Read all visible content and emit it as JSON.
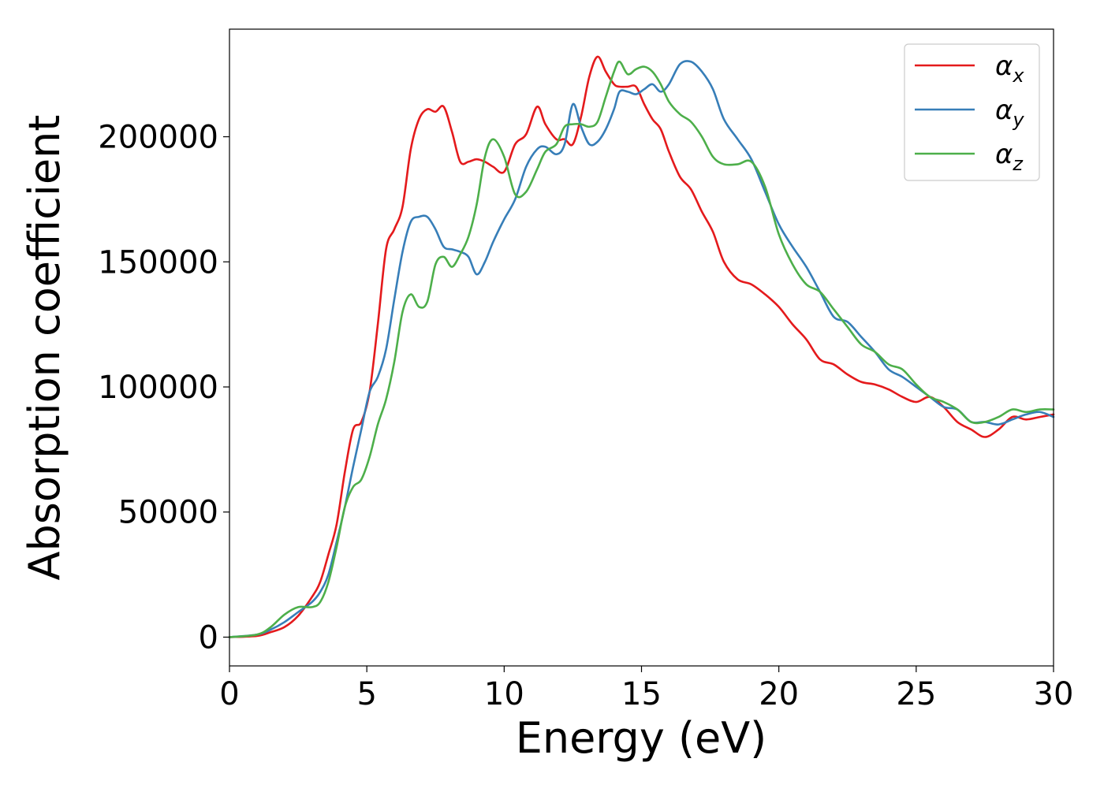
{
  "chart_data": {
    "type": "line",
    "title": "",
    "xlabel": "Energy (eV)",
    "ylabel": "Absorption coefficient",
    "xlim": [
      0,
      30
    ],
    "ylim": [
      -11500,
      243000
    ],
    "xticks": [
      0,
      5,
      10,
      15,
      20,
      25,
      30
    ],
    "xtick_labels": [
      "0",
      "5",
      "10",
      "15",
      "20",
      "25",
      "30"
    ],
    "yticks": [
      0,
      50000,
      100000,
      150000,
      200000
    ],
    "ytick_labels": [
      "0",
      "50000",
      "100000",
      "150000",
      "200000"
    ],
    "grid": false,
    "legend_position": "top-right",
    "series": [
      {
        "name": "αx",
        "legend_base": "α",
        "legend_sub": "x",
        "color": "#e41a1c",
        "x": [
          0,
          1,
          1.5,
          2,
          2.5,
          3,
          3.3,
          3.6,
          3.9,
          4.2,
          4.5,
          4.8,
          5.1,
          5.4,
          5.7,
          6.0,
          6.3,
          6.6,
          6.9,
          7.2,
          7.5,
          7.8,
          8.1,
          8.4,
          8.7,
          9.0,
          9.3,
          9.6,
          10.0,
          10.4,
          10.8,
          11.2,
          11.5,
          11.9,
          12.2,
          12.5,
          12.8,
          13.1,
          13.4,
          13.7,
          14.0,
          14.2,
          14.5,
          14.8,
          15.1,
          15.4,
          15.7,
          16.0,
          16.4,
          16.8,
          17.2,
          17.6,
          18.0,
          18.5,
          19.0,
          19.5,
          20.0,
          20.5,
          21.0,
          21.5,
          22.0,
          22.5,
          23.0,
          23.5,
          24.0,
          24.5,
          25.0,
          25.5,
          26.0,
          26.5,
          27.0,
          27.5,
          28.0,
          28.5,
          29.0,
          29.5,
          30.0
        ],
        "y": [
          0,
          500,
          2000,
          4000,
          8500,
          16000,
          22000,
          33000,
          45000,
          66000,
          83000,
          86000,
          98000,
          125000,
          155000,
          163000,
          172000,
          195000,
          207000,
          211000,
          210000,
          212000,
          202000,
          190000,
          190000,
          191000,
          190000,
          188000,
          186000,
          197000,
          201000,
          212000,
          205000,
          199000,
          199000,
          197000,
          208000,
          224000,
          232000,
          226000,
          221000,
          220000,
          220000,
          220000,
          213000,
          207000,
          203000,
          194000,
          184000,
          179000,
          170000,
          162000,
          150000,
          143000,
          141000,
          137000,
          132000,
          125000,
          119000,
          111000,
          109000,
          105000,
          102000,
          101000,
          99000,
          96000,
          94000,
          96000,
          92000,
          86000,
          83000,
          80000,
          83000,
          88000,
          87000,
          88000,
          89000
        ]
      },
      {
        "name": "αy",
        "legend_base": "α",
        "legend_sub": "y",
        "color": "#377eb8",
        "x": [
          0,
          1,
          1.5,
          2,
          2.5,
          3,
          3.3,
          3.6,
          3.9,
          4.2,
          4.5,
          4.8,
          5.1,
          5.4,
          5.7,
          6.0,
          6.3,
          6.6,
          6.9,
          7.2,
          7.5,
          7.8,
          8.1,
          8.4,
          8.7,
          9.0,
          9.3,
          9.6,
          10.0,
          10.4,
          10.8,
          11.2,
          11.5,
          11.9,
          12.2,
          12.5,
          12.8,
          13.1,
          13.4,
          13.7,
          14.0,
          14.2,
          14.5,
          14.8,
          15.1,
          15.4,
          15.7,
          16.0,
          16.4,
          16.8,
          17.2,
          17.6,
          18.0,
          18.5,
          19.0,
          19.5,
          20.0,
          20.5,
          21.0,
          21.5,
          22.0,
          22.5,
          23.0,
          23.5,
          24.0,
          24.5,
          25.0,
          25.5,
          26.0,
          26.5,
          27.0,
          27.5,
          28.0,
          28.5,
          29.0,
          29.5,
          30.0
        ],
        "y": [
          0,
          1000,
          3000,
          6000,
          10000,
          14000,
          18000,
          25000,
          38000,
          52000,
          68000,
          83000,
          98000,
          104000,
          115000,
          135000,
          154000,
          166000,
          168000,
          168000,
          163000,
          156000,
          155000,
          154000,
          152000,
          145000,
          150000,
          158000,
          167000,
          175000,
          188000,
          195000,
          196000,
          193000,
          197000,
          213000,
          204000,
          197000,
          198000,
          203000,
          211000,
          218000,
          218000,
          217000,
          219000,
          221000,
          218000,
          221000,
          229000,
          230000,
          226000,
          219000,
          207000,
          199000,
          191000,
          178000,
          165000,
          156000,
          148000,
          138000,
          128000,
          126000,
          120000,
          114000,
          107000,
          104000,
          100000,
          96000,
          92000,
          91000,
          86000,
          86000,
          85000,
          87000,
          89000,
          90000,
          88000
        ]
      },
      {
        "name": "αz",
        "legend_base": "α",
        "legend_sub": "z",
        "color": "#4daf4a",
        "x": [
          0,
          1,
          1.5,
          2,
          2.5,
          3,
          3.3,
          3.6,
          3.9,
          4.2,
          4.5,
          4.8,
          5.1,
          5.4,
          5.7,
          6.0,
          6.3,
          6.6,
          6.9,
          7.2,
          7.5,
          7.8,
          8.1,
          8.4,
          8.7,
          9.0,
          9.3,
          9.6,
          10.0,
          10.4,
          10.8,
          11.2,
          11.5,
          11.9,
          12.2,
          12.5,
          12.8,
          13.1,
          13.4,
          13.7,
          14.0,
          14.2,
          14.5,
          14.8,
          15.1,
          15.4,
          15.7,
          16.0,
          16.4,
          16.8,
          17.2,
          17.6,
          18.0,
          18.5,
          19.0,
          19.5,
          20.0,
          20.5,
          21.0,
          21.5,
          22.0,
          22.5,
          23.0,
          23.5,
          24.0,
          24.5,
          25.0,
          25.5,
          26.0,
          26.5,
          27.0,
          27.5,
          28.0,
          28.5,
          29.0,
          29.5,
          30.0
        ],
        "y": [
          0,
          1000,
          4000,
          9000,
          12000,
          12000,
          14000,
          22000,
          36000,
          52000,
          60000,
          63000,
          72000,
          85000,
          95000,
          110000,
          130000,
          137000,
          132000,
          134000,
          149000,
          152000,
          148000,
          153000,
          160000,
          173000,
          192000,
          199000,
          192000,
          177000,
          178000,
          187000,
          194000,
          197000,
          204000,
          205000,
          205000,
          204000,
          206000,
          216000,
          226000,
          230000,
          225000,
          227000,
          228000,
          226000,
          221000,
          214000,
          209000,
          206000,
          200000,
          192000,
          189000,
          189000,
          190000,
          180000,
          161000,
          149000,
          141000,
          138000,
          131000,
          124000,
          117000,
          114000,
          109000,
          107000,
          101000,
          96000,
          94000,
          91000,
          86000,
          86000,
          88000,
          91000,
          90000,
          91000,
          91000
        ]
      }
    ]
  }
}
